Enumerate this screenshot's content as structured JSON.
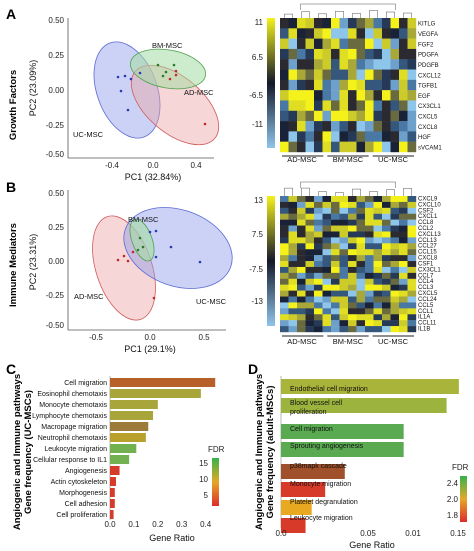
{
  "panels": {
    "A": {
      "label": "A",
      "side_label": "Growth Factors",
      "pca": {
        "xlabel": "PC1 (32.84%)",
        "ylabel": "PC2 (23.09%)",
        "xticks": [
          "-0.4",
          "0.0",
          "0.4"
        ],
        "yticks": [
          "0.50",
          "0.25",
          "0.00",
          "-0.25",
          "-0.50"
        ],
        "groups": [
          "BM-MSC",
          "AD-MSC",
          "UC-MSC"
        ]
      },
      "heatmap": {
        "scale": [
          "11",
          "6.5",
          "-6.5",
          "-11"
        ],
        "genes": [
          "KITLG",
          "VEGFA",
          "FGF2",
          "PDGFA",
          "PDGFB",
          "CXCL12",
          "TGFB1",
          "EGF",
          "CX3CL1",
          "CXCL5",
          "CXCL8",
          "HGF",
          "sVCAM1"
        ],
        "groups": [
          "AD-MSC",
          "BM-MSC",
          "UC-MSC"
        ]
      }
    },
    "B": {
      "label": "B",
      "side_label": "Immune Mediators",
      "pca": {
        "xlabel": "PC1 (29.1%)",
        "ylabel": "PC2 (23.31%)",
        "xticks": [
          "-0.5",
          "0.0",
          "0.5"
        ],
        "yticks": [
          "0.50",
          "0.25",
          "0.00",
          "-0.25",
          "-0.50"
        ],
        "groups": [
          "BM-MSC",
          "AD-MSC",
          "UC-MSC"
        ]
      },
      "heatmap": {
        "scale": [
          "13",
          "7.5",
          "-7.5",
          "-13"
        ],
        "genes": [
          "CXCL9",
          "CXCL10",
          "CSF2",
          "CXCL1",
          "CCL8",
          "CCL2",
          "CXCL13",
          "CCL13",
          "CCL27",
          "CCL15",
          "CXCL8",
          "CSF1",
          "CX3CL1",
          "CCL7",
          "CCL4",
          "CCL3",
          "CXCL5",
          "CCL24",
          "CCL5",
          "CCL1",
          "IL1A",
          "CCL11",
          "IL1B"
        ],
        "groups": [
          "AD-MSC",
          "BM-MSC",
          "UC-MSC"
        ]
      }
    },
    "C": {
      "label": "C",
      "ylabel_line1": "Angiogenic and Immune pathways",
      "ylabel_line2": "Gene frequency (UC-MSCs)",
      "xlabel": "Gene Ratio",
      "xticks": [
        "0.0",
        "0.1",
        "0.2",
        "0.3",
        "0.4"
      ],
      "legend_title": "FDR",
      "legend_ticks": [
        "15",
        "10",
        "5"
      ]
    },
    "D": {
      "label": "D",
      "ylabel_line1": "Angiogenic and Immune pathways",
      "ylabel_line2": "Gene frequency (adult-MSCs)",
      "xlabel": "Gene Ratio",
      "xticks": [
        "0.0",
        "0.05",
        "0.01",
        "0.15"
      ],
      "legend_title": "FDR",
      "legend_ticks": [
        "2.4",
        "2.0",
        "1.8"
      ]
    }
  },
  "chart_data": [
    {
      "type": "bar",
      "panel": "C",
      "orientation": "horizontal",
      "categories": [
        "Cell migration",
        "Eosinophil chemotaxis",
        "Monocyte chemotaxis",
        "Lymphocyte chemotaxis",
        "Macropage migration",
        "Neutrophil chemotaxis",
        "Leukocyte migration",
        "Cellular response to IL1",
        "Angiogenesis",
        "Actin cytoskeleton",
        "Morphogenesis",
        "Cell adhesion",
        "Cell proliferation"
      ],
      "values": [
        0.44,
        0.38,
        0.2,
        0.18,
        0.16,
        0.15,
        0.11,
        0.08,
        0.04,
        0.025,
        0.02,
        0.02,
        0.015
      ],
      "colors": [
        "#b8602a",
        "#a8a63a",
        "#a8a63a",
        "#a8a63a",
        "#9c7a3a",
        "#b8a02a",
        "#72b050",
        "#72b050",
        "#d63a2a",
        "#d63a2a",
        "#d63a2a",
        "#d63a2a",
        "#d63a2a"
      ],
      "xlabel": "Gene Ratio",
      "xlim": [
        0,
        0.46
      ],
      "legend": "FDR"
    },
    {
      "type": "bar",
      "panel": "D",
      "orientation": "horizontal",
      "categories": [
        "Endothelial cell migration",
        "Blood vessel cell proliferation",
        "Cell migration",
        "Sprouting angiogenesis",
        "p38mapk cascade",
        "Monocyte migration",
        "Platelet degranulation",
        "Leukocyte migration"
      ],
      "values": [
        0.145,
        0.135,
        0.1,
        0.1,
        0.052,
        0.036,
        0.025,
        0.02
      ],
      "colors": [
        "#a8b43a",
        "#9cb43e",
        "#5aaa52",
        "#5aaa52",
        "#a0502a",
        "#d83a2a",
        "#e8a820",
        "#d83a2a"
      ],
      "xlabel": "Gene Ratio",
      "xlim": [
        0,
        0.15
      ],
      "legend": "FDR"
    }
  ]
}
